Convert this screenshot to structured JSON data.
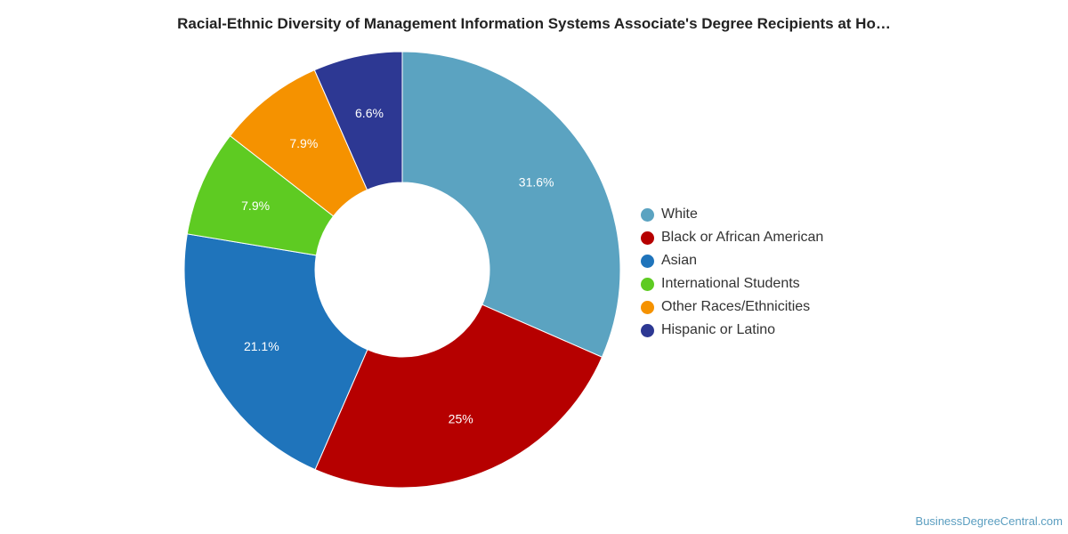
{
  "chart_data": {
    "type": "pie",
    "title": "Racial-Ethnic Diversity of Management Information Systems Associate's Degree Recipients at Ho…",
    "donut": true,
    "legend_position": "right",
    "slices": [
      {
        "name": "White",
        "value": 31.6,
        "label": "31.6%",
        "color": "#5ba3c1"
      },
      {
        "name": "Black or African American",
        "value": 25,
        "label": "25%",
        "color": "#b60000"
      },
      {
        "name": "Asian",
        "value": 21.1,
        "label": "21.1%",
        "color": "#1f74bb"
      },
      {
        "name": "International Students",
        "value": 7.9,
        "label": "7.9%",
        "color": "#5ecb22"
      },
      {
        "name": "Other Races/Ethnicities",
        "value": 7.9,
        "label": "7.9%",
        "color": "#f59200"
      },
      {
        "name": "Hispanic or Latino",
        "value": 6.6,
        "label": "6.6%",
        "color": "#2d3893"
      }
    ]
  },
  "footer": {
    "watermark": "BusinessDegreeCentral.com"
  }
}
